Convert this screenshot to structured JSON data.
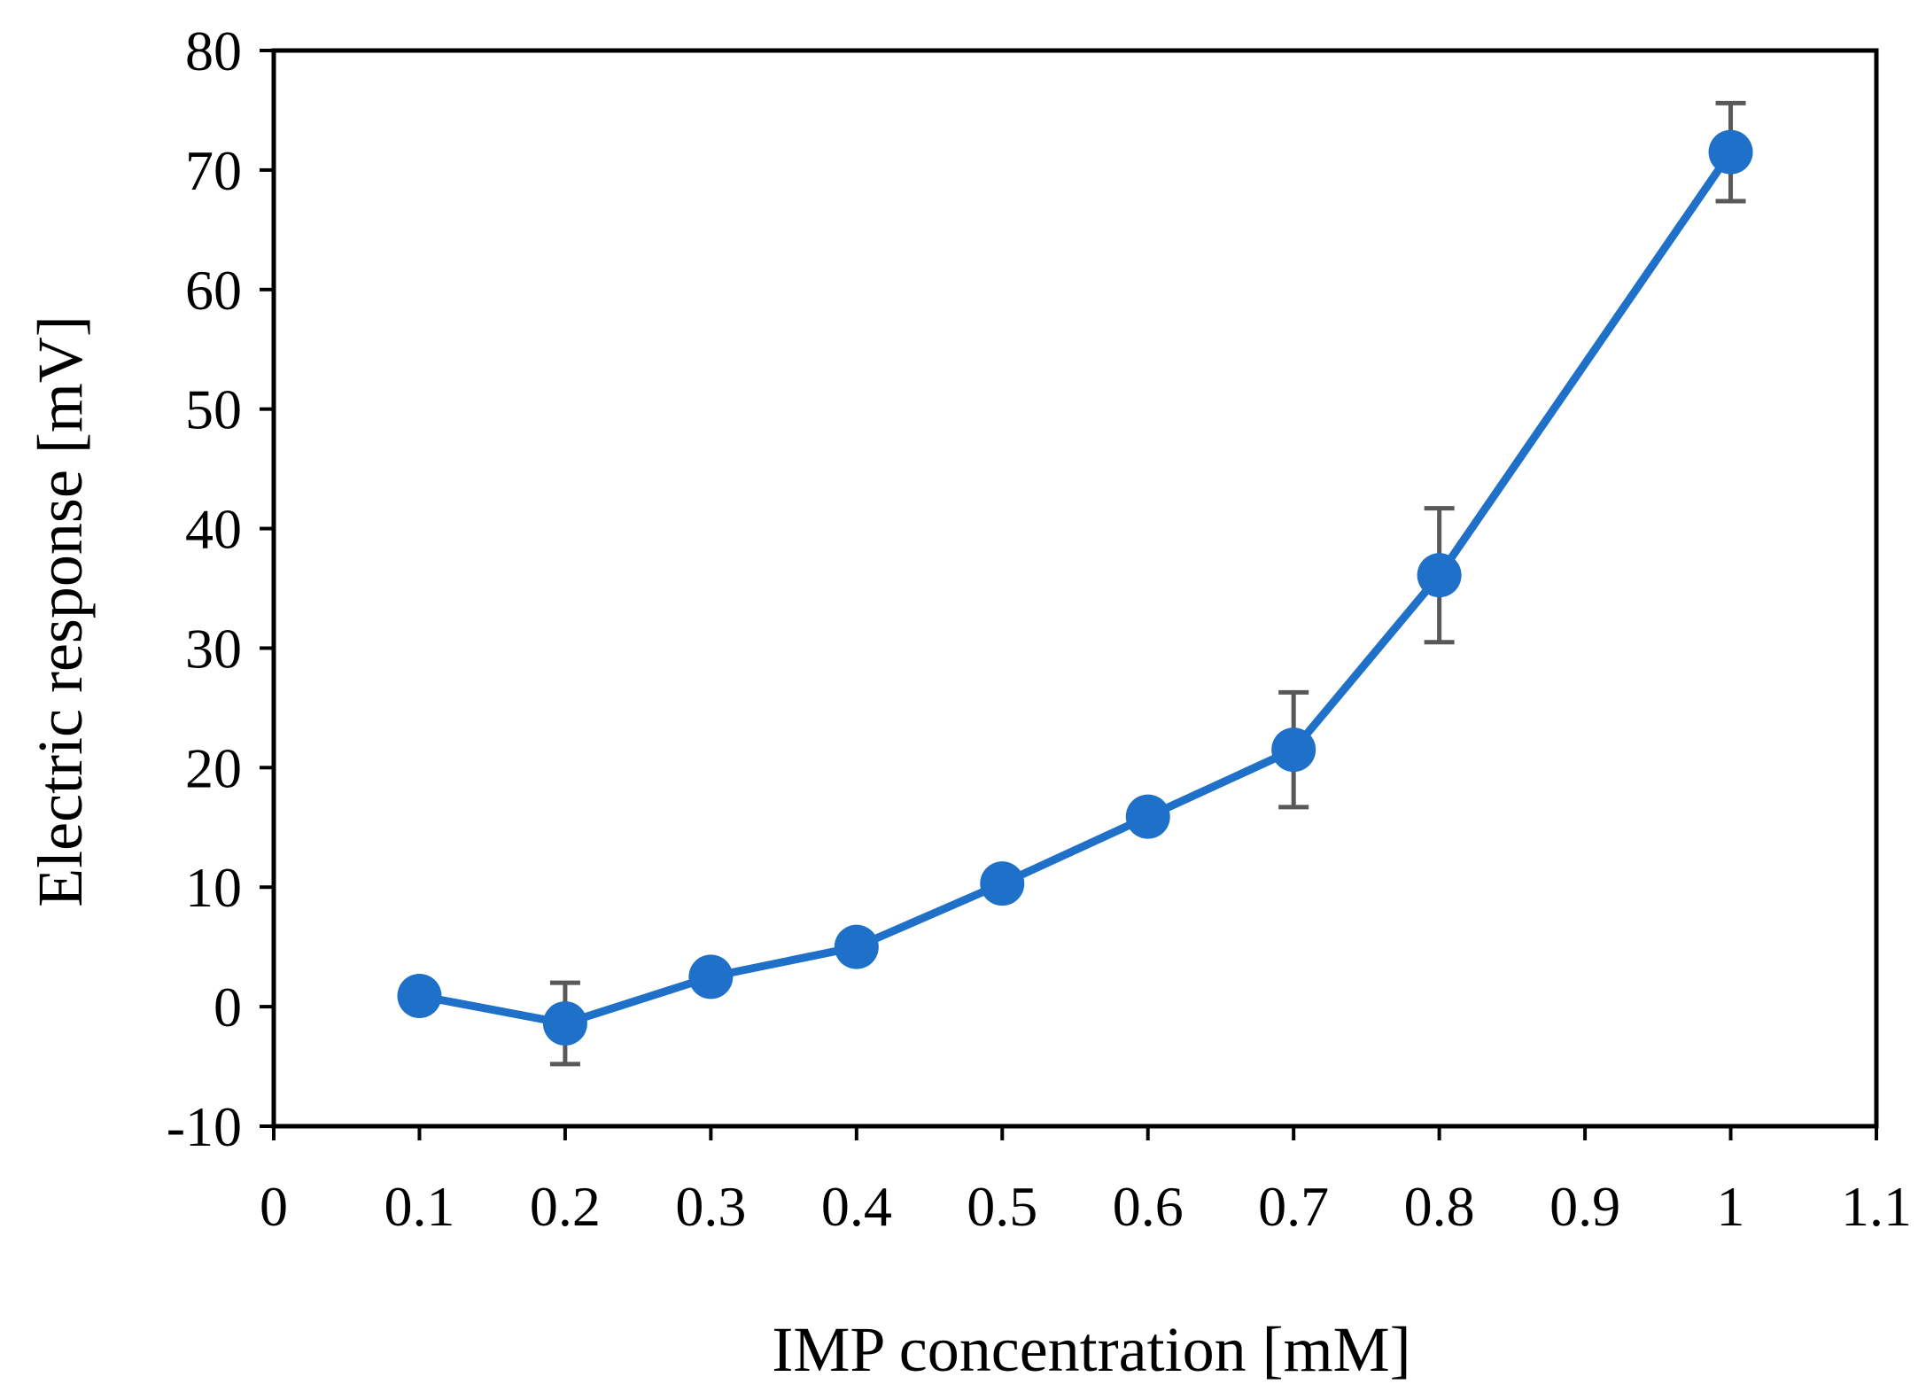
{
  "chart_data": {
    "type": "line",
    "title": "",
    "xlabel": "IMP concentration [mM]",
    "ylabel": "Electric response [mV]",
    "xlim": [
      0,
      1.1
    ],
    "ylim": [
      -10,
      80
    ],
    "x_ticks": [
      0,
      0.1,
      0.2,
      0.3,
      0.4,
      0.5,
      0.6,
      0.7,
      0.8,
      0.9,
      1,
      1.1
    ],
    "x_tick_labels": [
      "0",
      "0.1",
      "0.2",
      "0.3",
      "0.4",
      "0.5",
      "0.6",
      "0.7",
      "0.8",
      "0.9",
      "1",
      "1.1"
    ],
    "y_ticks": [
      -10,
      0,
      10,
      20,
      30,
      40,
      50,
      60,
      70,
      80
    ],
    "y_tick_labels": [
      "-10",
      "0",
      "10",
      "20",
      "30",
      "40",
      "50",
      "60",
      "70",
      "80"
    ],
    "grid": false,
    "series": [
      {
        "name": "Electric response",
        "color": "#1f70c8",
        "x": [
          0.1,
          0.2,
          0.3,
          0.4,
          0.5,
          0.6,
          0.7,
          0.8,
          1.0
        ],
        "y": [
          0.9,
          -1.4,
          2.5,
          5.0,
          10.3,
          15.9,
          21.5,
          36.1,
          71.5
        ],
        "error": [
          0.0,
          3.4,
          0.0,
          0.0,
          0.0,
          0.0,
          4.8,
          5.6,
          4.1
        ]
      }
    ],
    "error_bar_color": "#595959"
  }
}
